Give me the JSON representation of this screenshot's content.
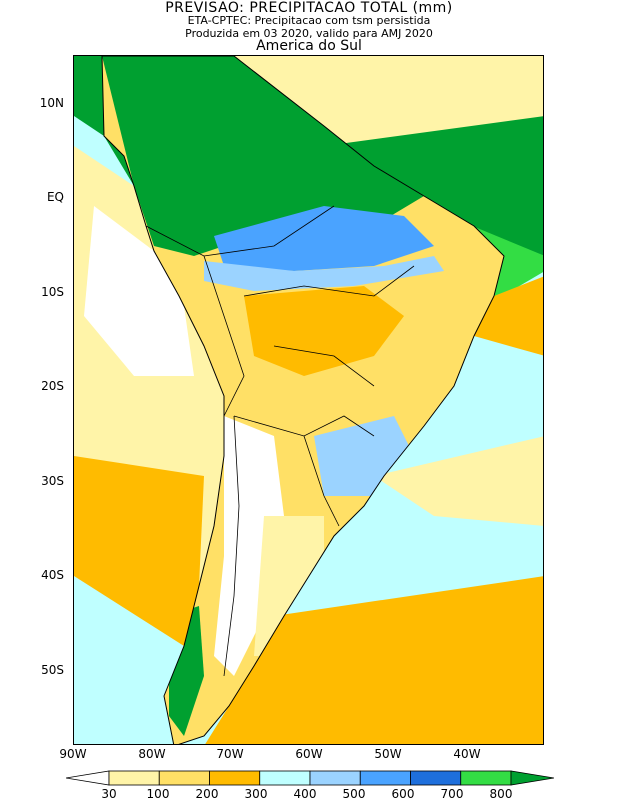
{
  "header": {
    "title": "PREVISAO: PRECIPITACAO TOTAL (mm)",
    "subtitle1": "ETA-CPTEC: Precipitacao com tsm persistida",
    "subtitle2": "Produzida em 03 2020, valido para AMJ 2020",
    "region": "America do Sul"
  },
  "axes": {
    "lat_labels": [
      "10N",
      "EQ",
      "10S",
      "20S",
      "30S",
      "40S",
      "50S"
    ],
    "lon_labels": [
      "90W",
      "80W",
      "70W",
      "60W",
      "50W",
      "40W"
    ]
  },
  "legend": {
    "unit": "mm",
    "thresholds": [
      "30",
      "100",
      "200",
      "300",
      "400",
      "500",
      "600",
      "700",
      "800"
    ],
    "colors": [
      "#ffffff",
      "#fff4a8",
      "#ffe066",
      "#ffbb00",
      "#bfffff",
      "#9bd3ff",
      "#4aa3ff",
      "#1e6fdc",
      "#33dd44",
      "#00a030"
    ]
  }
}
